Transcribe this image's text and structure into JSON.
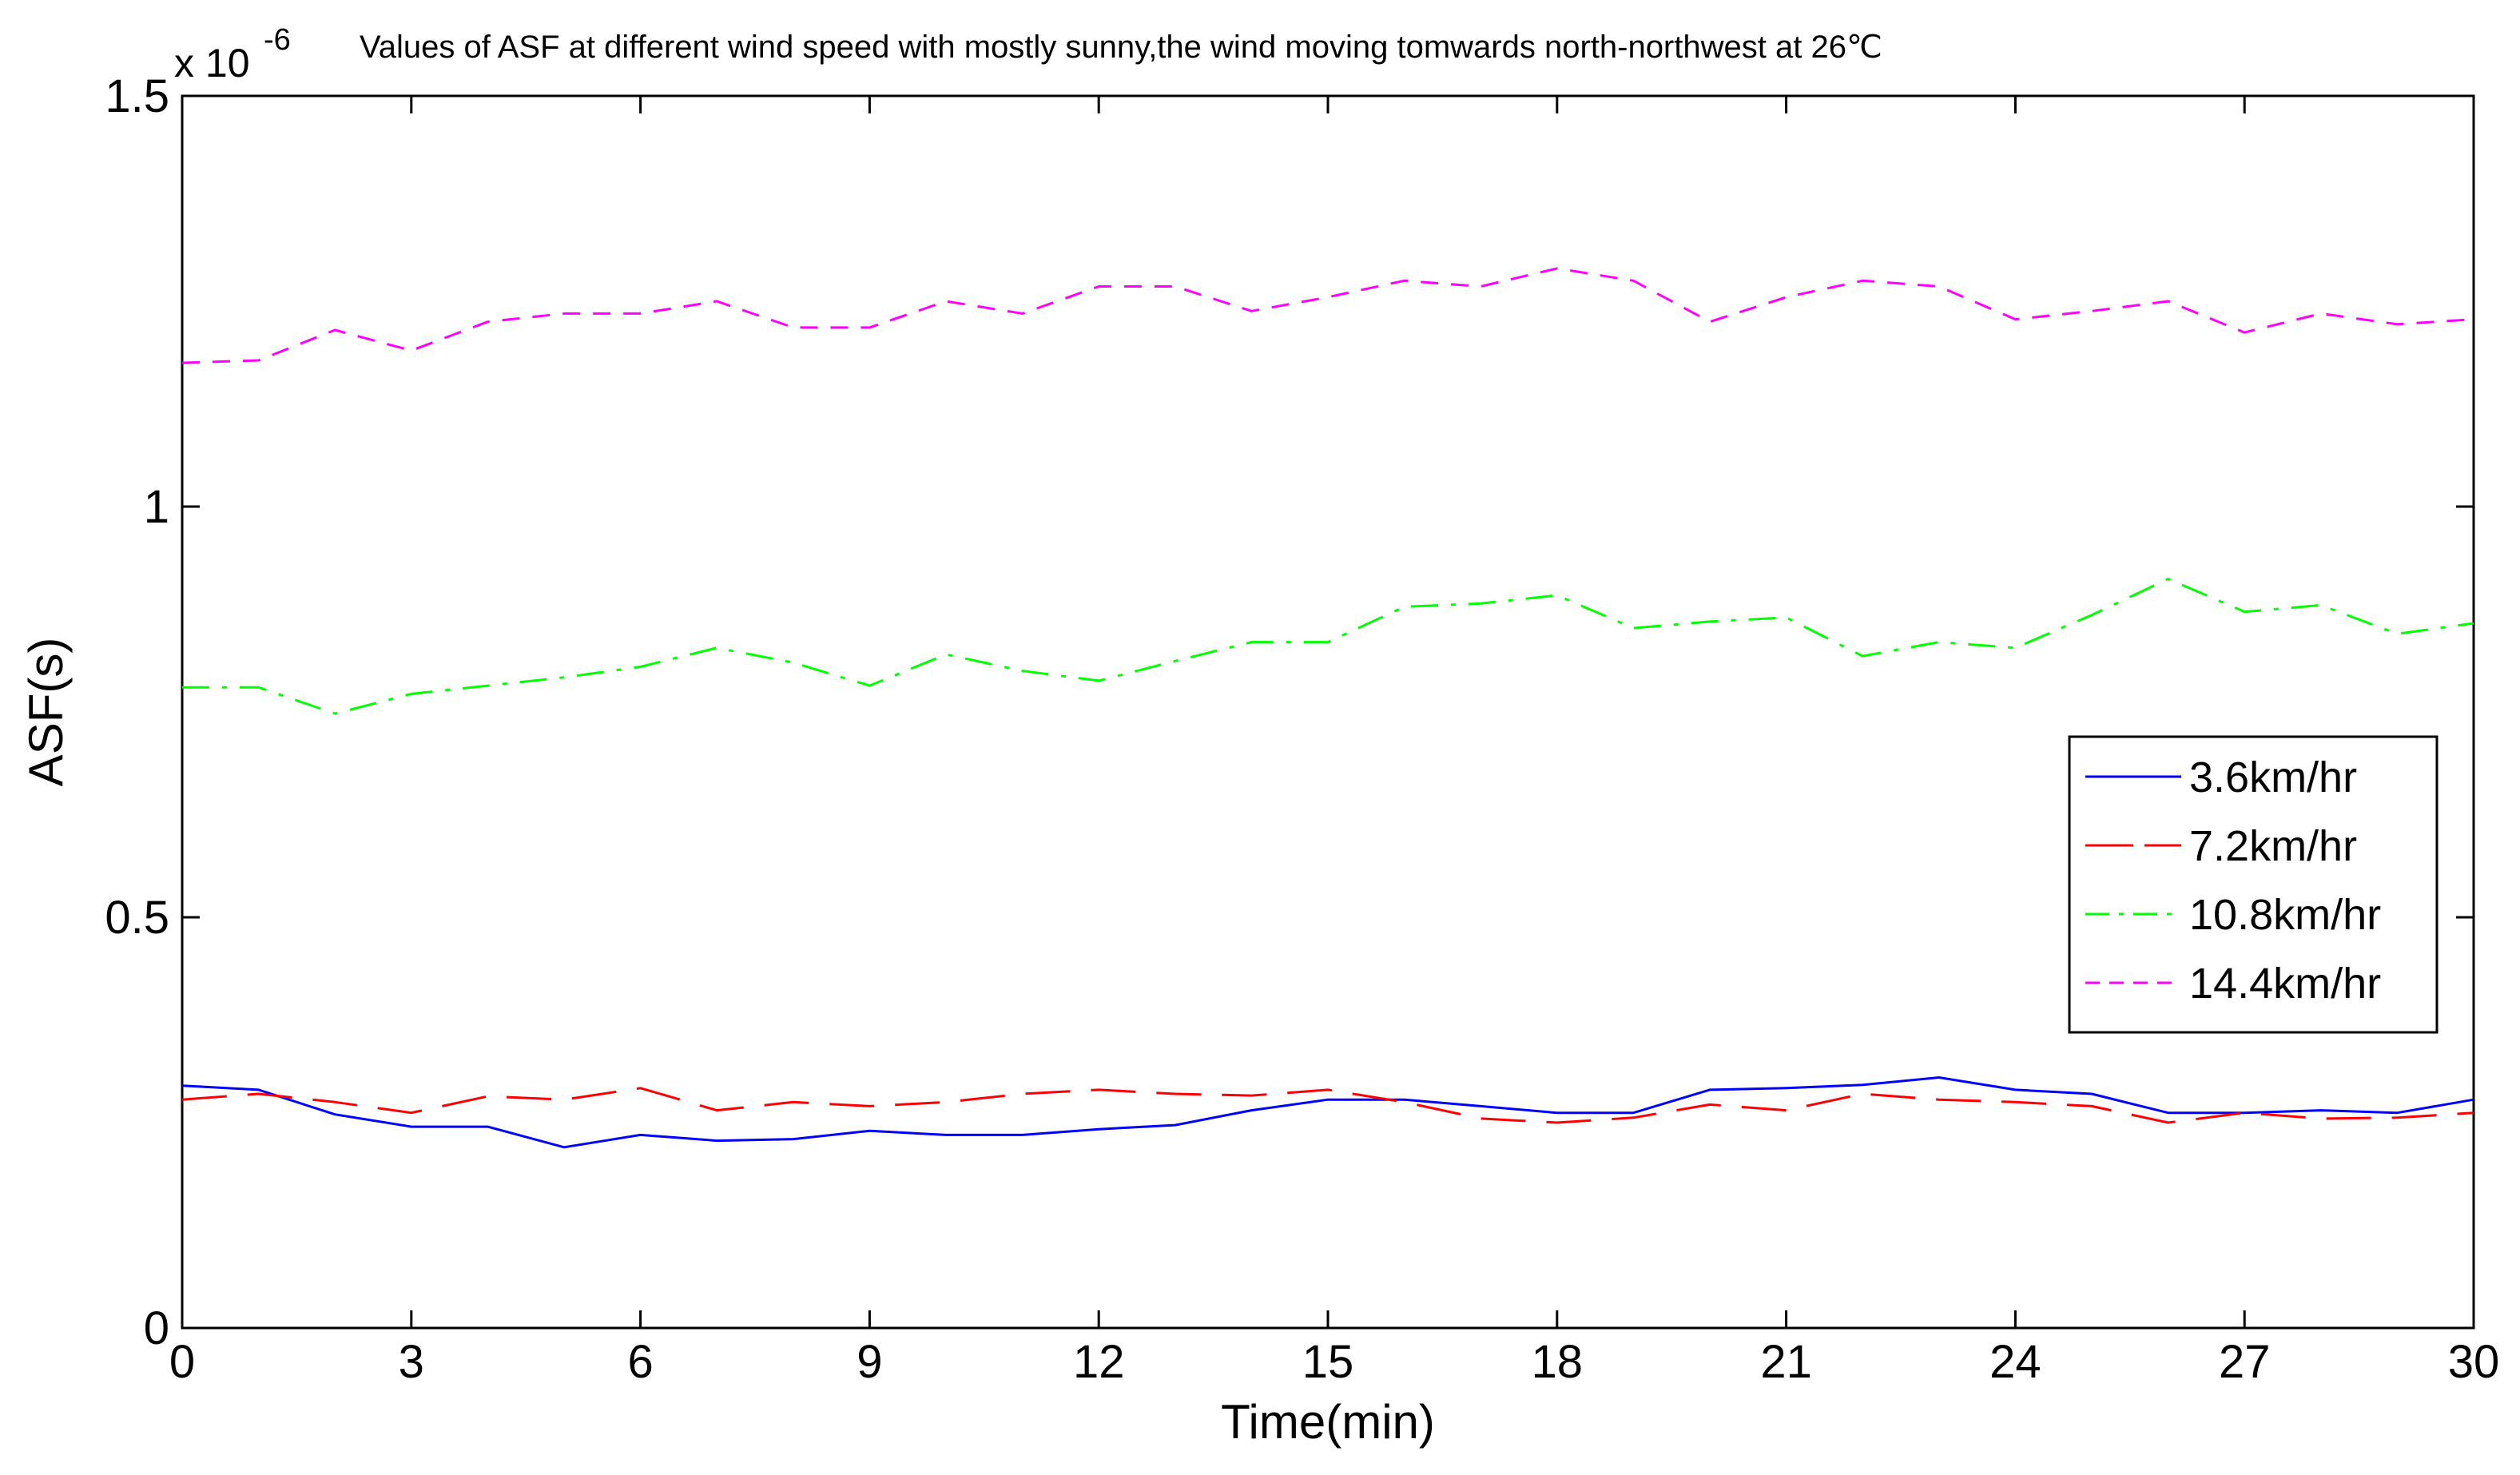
{
  "chart_data": {
    "type": "line",
    "title": "Values of ASF at different wind speed with mostly sunny,the wind moving tomwards north-northwest at 26℃",
    "xlabel": "Time(min)",
    "ylabel": "ASF(s)",
    "y_multiplier_base": "x 10",
    "y_multiplier_exp": "-6",
    "xlim": [
      0,
      30
    ],
    "ylim": [
      0,
      1.5
    ],
    "xticks": [
      0,
      3,
      6,
      9,
      12,
      15,
      18,
      21,
      24,
      27,
      30
    ],
    "xtick_labels": [
      "0",
      "3",
      "6",
      "9",
      "12",
      "15",
      "18",
      "21",
      "24",
      "27",
      "30"
    ],
    "yticks": [
      0,
      0.5,
      1,
      1.5
    ],
    "ytick_labels": [
      "0",
      "0.5",
      "1",
      "1.5"
    ],
    "grid": false,
    "legend_position": "right",
    "x": [
      0,
      1,
      2,
      3,
      4,
      5,
      6,
      7,
      8,
      9,
      10,
      11,
      12,
      13,
      14,
      15,
      16,
      17,
      18,
      19,
      20,
      21,
      22,
      23,
      24,
      25,
      26,
      27,
      28,
      29,
      30
    ],
    "series": [
      {
        "name": "3.6km/hr",
        "color": "#0000ff",
        "dash": "solid",
        "values": [
          0.295,
          0.29,
          0.26,
          0.245,
          0.245,
          0.22,
          0.235,
          0.228,
          0.23,
          0.24,
          0.235,
          0.235,
          0.242,
          0.247,
          0.265,
          0.278,
          0.278,
          0.27,
          0.262,
          0.262,
          0.29,
          0.292,
          0.296,
          0.305,
          0.29,
          0.285,
          0.262,
          0.262,
          0.265,
          0.262,
          0.278
        ]
      },
      {
        "name": "7.2km/hr",
        "color": "#ff0000",
        "dash": "longdash",
        "values": [
          0.278,
          0.285,
          0.275,
          0.262,
          0.282,
          0.278,
          0.292,
          0.265,
          0.275,
          0.27,
          0.275,
          0.285,
          0.29,
          0.285,
          0.283,
          0.29,
          0.275,
          0.255,
          0.25,
          0.256,
          0.272,
          0.265,
          0.285,
          0.278,
          0.275,
          0.27,
          0.25,
          0.262,
          0.255,
          0.256,
          0.262
        ]
      },
      {
        "name": "10.8km/hr",
        "color": "#00ff00",
        "dash": "dashdot",
        "values": [
          0.78,
          0.78,
          0.748,
          0.772,
          0.782,
          0.792,
          0.805,
          0.828,
          0.81,
          0.782,
          0.82,
          0.8,
          0.788,
          0.812,
          0.835,
          0.835,
          0.878,
          0.882,
          0.892,
          0.852,
          0.86,
          0.865,
          0.818,
          0.835,
          0.828,
          0.868,
          0.912,
          0.872,
          0.88,
          0.845,
          0.858
        ]
      },
      {
        "name": "14.4km/hr",
        "color": "#ff00ff",
        "dash": "dashed",
        "values": [
          1.175,
          1.178,
          1.215,
          1.19,
          1.225,
          1.235,
          1.235,
          1.25,
          1.218,
          1.218,
          1.25,
          1.235,
          1.268,
          1.268,
          1.238,
          1.255,
          1.275,
          1.268,
          1.29,
          1.275,
          1.225,
          1.255,
          1.275,
          1.268,
          1.228,
          1.238,
          1.25,
          1.212,
          1.235,
          1.222,
          1.228
        ]
      }
    ]
  }
}
